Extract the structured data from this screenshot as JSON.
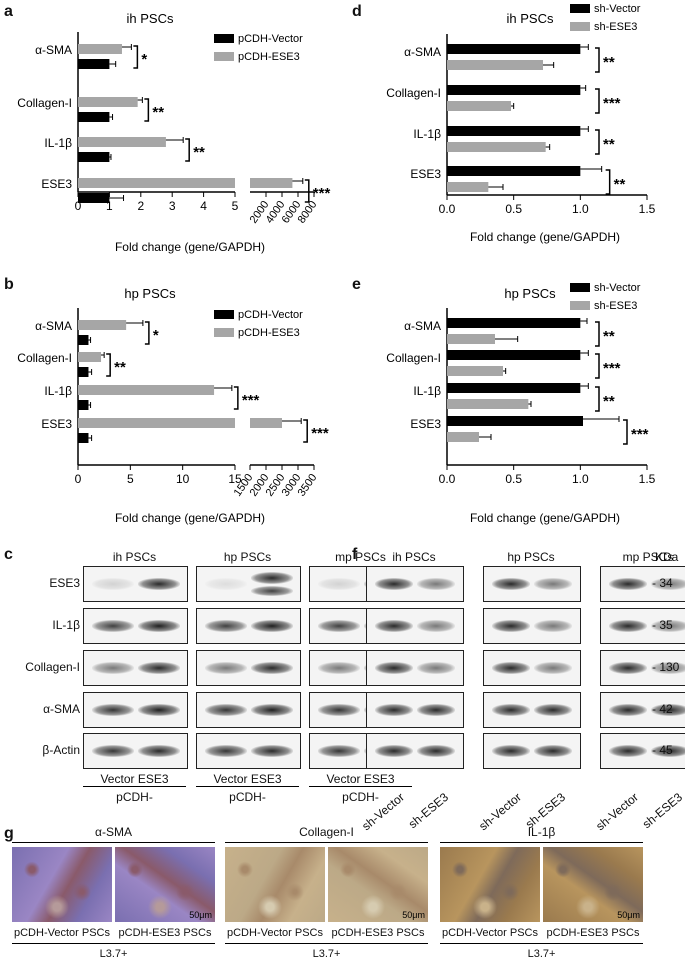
{
  "panels": {
    "a": "a",
    "b": "b",
    "c": "c",
    "d": "d",
    "e": "e",
    "f": "f",
    "g": "g"
  },
  "chart_data": [
    {
      "id": "a",
      "type": "bar",
      "title": "ih PSCs",
      "xlabel": "Fold change (gene/GAPDH)",
      "ylabel": "",
      "categories": [
        "α-SMA",
        "Collagen-I",
        "IL-1β",
        "ESE3"
      ],
      "series": [
        {
          "name": "pCDH-Vector",
          "color": "#000000",
          "values": [
            1.0,
            1.0,
            1.0,
            1.0
          ],
          "errors": [
            0.2,
            0.1,
            0.05,
            0.45
          ]
        },
        {
          "name": "pCDH-ESE3",
          "color": "#a6a6a6",
          "values": [
            1.4,
            1.9,
            2.8,
            5300
          ],
          "errors": [
            0.3,
            0.15,
            0.55,
            1300
          ]
        }
      ],
      "significance": [
        "*",
        "**",
        "**",
        "***"
      ],
      "xticks_left": [
        "0",
        "1",
        "2",
        "3",
        "4",
        "5"
      ],
      "xticks_right": [
        "2000",
        "4000",
        "6000",
        "8000"
      ],
      "axis_break": true,
      "xlim_left": [
        0,
        5
      ],
      "xlim_right": [
        0,
        8000
      ],
      "legend": "top-right"
    },
    {
      "id": "b",
      "type": "bar",
      "title": "hp PSCs",
      "xlabel": "Fold change (gene/GAPDH)",
      "ylabel": "",
      "categories": [
        "α-SMA",
        "Collagen-I",
        "IL-1β",
        "ESE3"
      ],
      "series": [
        {
          "name": "pCDH-Vector",
          "color": "#000000",
          "values": [
            1.0,
            1.0,
            1.0,
            1.0
          ],
          "errors": [
            0.2,
            0.3,
            0.2,
            0.3
          ]
        },
        {
          "name": "pCDH-ESE3",
          "color": "#a6a6a6",
          "values": [
            4.6,
            2.2,
            13.0,
            2500
          ],
          "errors": [
            1.6,
            0.3,
            1.7,
            600
          ]
        }
      ],
      "significance": [
        "*",
        "**",
        "***",
        "***"
      ],
      "xticks_left": [
        "0",
        "5",
        "10",
        "15"
      ],
      "xticks_right": [
        "1500",
        "2000",
        "2500",
        "3000",
        "3500"
      ],
      "axis_break": true,
      "xlim_left": [
        0,
        15
      ],
      "xlim_right": [
        1500,
        3500
      ],
      "legend": "top-right"
    },
    {
      "id": "d",
      "type": "bar",
      "title": "ih PSCs",
      "xlabel": "Fold change (gene/GAPDH)",
      "ylabel": "",
      "categories": [
        "α-SMA",
        "Collagen-I",
        "IL-1β",
        "ESE3"
      ],
      "series": [
        {
          "name": "sh-Vector",
          "color": "#000000",
          "values": [
            1.0,
            1.0,
            1.0,
            1.0
          ],
          "errors": [
            0.06,
            0.04,
            0.06,
            0.16
          ]
        },
        {
          "name": "sh-ESE3",
          "color": "#a6a6a6",
          "values": [
            0.72,
            0.48,
            0.74,
            0.31
          ],
          "errors": [
            0.08,
            0.02,
            0.03,
            0.11
          ]
        }
      ],
      "significance": [
        "**",
        "***",
        "**",
        "**"
      ],
      "xticks": [
        "0.0",
        "0.5",
        "1.0",
        "1.5"
      ],
      "xlim": [
        0,
        1.5
      ],
      "legend": "top-right"
    },
    {
      "id": "e",
      "type": "bar",
      "title": "hp PSCs",
      "xlabel": "Fold change (gene/GAPDH)",
      "ylabel": "",
      "categories": [
        "α-SMA",
        "Collagen-I",
        "IL-1β",
        "ESE3"
      ],
      "series": [
        {
          "name": "sh-Vector",
          "color": "#000000",
          "values": [
            1.0,
            1.0,
            1.0,
            1.02
          ],
          "errors": [
            0.05,
            0.06,
            0.06,
            0.27
          ]
        },
        {
          "name": "sh-ESE3",
          "color": "#a6a6a6",
          "values": [
            0.36,
            0.42,
            0.61,
            0.24
          ],
          "errors": [
            0.17,
            0.02,
            0.02,
            0.09
          ]
        }
      ],
      "significance": [
        "**",
        "***",
        "**",
        "***"
      ],
      "xticks": [
        "0.0",
        "0.5",
        "1.0",
        "1.5"
      ],
      "xlim": [
        0,
        1.5
      ],
      "legend": "top-right"
    }
  ],
  "blots_c": {
    "groups": [
      "ih PSCs",
      "hp PSCs",
      "mp PSCs"
    ],
    "rows": [
      "ESE3",
      "IL-1β",
      "Collagen-I",
      "α-SMA",
      "β-Actin"
    ],
    "lane_labels": "Vector ESE3",
    "group_caption": "pCDH-"
  },
  "blots_f": {
    "groups": [
      "ih PSCs",
      "hp PSCs",
      "mp PSCs"
    ],
    "kda_header": "KDa",
    "kda": [
      "34",
      "35",
      "130",
      "42",
      "45"
    ],
    "lanes": [
      "sh-Vector",
      "sh-ESE3"
    ]
  },
  "histology_g": {
    "stains": [
      "α-SMA",
      "Collagen-I",
      "IL-1β"
    ],
    "captions": [
      "pCDH-Vector PSCs",
      "pCDH-ESE3 PSCs"
    ],
    "group": "L3.7+",
    "scale": "50μm"
  }
}
